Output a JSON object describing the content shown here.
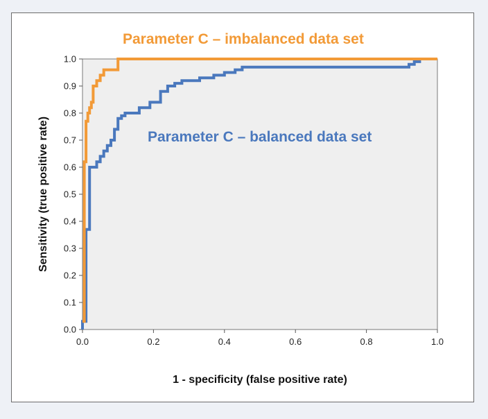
{
  "chart_data": {
    "type": "line",
    "title": "",
    "xlabel": "1 - specificity (false positive rate)",
    "ylabel": "Sensitivity (true positive  rate)",
    "xlim": [
      0,
      1
    ],
    "ylim": [
      0,
      1
    ],
    "x_ticks": [
      "0.0",
      "0.2",
      "0.4",
      "0.6",
      "0.8",
      "1.0"
    ],
    "y_ticks": [
      "0.0",
      "0.1",
      "0.2",
      "0.3",
      "0.4",
      "0.5",
      "0.6",
      "0.7",
      "0.8",
      "0.9",
      "1.0"
    ],
    "grid": false,
    "plot_background": "#efefef",
    "series": [
      {
        "name": "Parameter C – imbalanced data set",
        "color": "#f29a37",
        "x": [
          0.0,
          0.005,
          0.005,
          0.01,
          0.01,
          0.015,
          0.015,
          0.02,
          0.02,
          0.025,
          0.025,
          0.03,
          0.03,
          0.04,
          0.04,
          0.05,
          0.05,
          0.06,
          0.06,
          0.1,
          0.1,
          0.12,
          1.0
        ],
        "y": [
          0.03,
          0.03,
          0.62,
          0.62,
          0.77,
          0.77,
          0.8,
          0.8,
          0.82,
          0.82,
          0.84,
          0.84,
          0.9,
          0.9,
          0.92,
          0.92,
          0.94,
          0.94,
          0.96,
          0.96,
          1.0,
          1.0,
          1.0
        ]
      },
      {
        "name": "Parameter C – balanced data set",
        "color": "#4a78bd",
        "x": [
          0.0,
          0.0,
          0.01,
          0.01,
          0.02,
          0.02,
          0.04,
          0.04,
          0.05,
          0.05,
          0.06,
          0.06,
          0.07,
          0.07,
          0.08,
          0.08,
          0.09,
          0.09,
          0.1,
          0.1,
          0.11,
          0.11,
          0.12,
          0.12,
          0.16,
          0.16,
          0.19,
          0.19,
          0.22,
          0.22,
          0.24,
          0.24,
          0.26,
          0.26,
          0.28,
          0.28,
          0.33,
          0.33,
          0.37,
          0.37,
          0.4,
          0.4,
          0.43,
          0.43,
          0.45,
          0.45,
          0.92,
          0.92,
          0.935,
          0.935,
          0.95,
          0.95,
          1.0
        ],
        "y": [
          0.0,
          0.03,
          0.03,
          0.37,
          0.37,
          0.6,
          0.6,
          0.62,
          0.62,
          0.64,
          0.64,
          0.66,
          0.66,
          0.68,
          0.68,
          0.7,
          0.7,
          0.74,
          0.74,
          0.78,
          0.78,
          0.79,
          0.79,
          0.8,
          0.8,
          0.82,
          0.82,
          0.84,
          0.84,
          0.88,
          0.88,
          0.9,
          0.9,
          0.91,
          0.91,
          0.92,
          0.92,
          0.93,
          0.93,
          0.94,
          0.94,
          0.95,
          0.95,
          0.96,
          0.96,
          0.97,
          0.97,
          0.98,
          0.98,
          0.99,
          0.99,
          1.0,
          1.0
        ]
      }
    ]
  }
}
